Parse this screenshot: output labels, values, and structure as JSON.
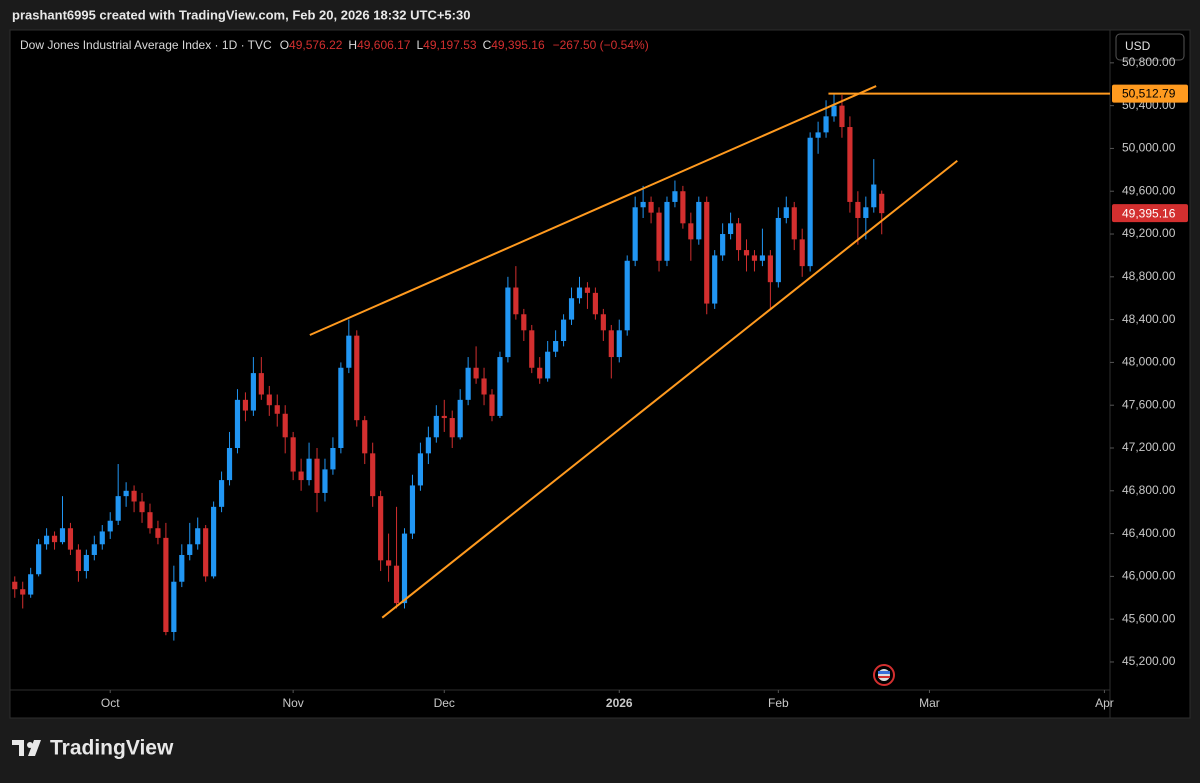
{
  "header": "prashant6995 created with TradingView.com, Feb 20, 2026 18:32 UTC+5:30",
  "brand": "TradingView",
  "currency": "USD",
  "chart_data": {
    "type": "candlestick",
    "title": "Dow Jones Industrial Average Index · 1D · TVC",
    "ohlc_legend": [
      {
        "key": "O",
        "value": "49,576.22"
      },
      {
        "key": "H",
        "value": "49,606.17"
      },
      {
        "key": "L",
        "value": "49,197.53"
      },
      {
        "key": "C",
        "value": "49,395.16"
      }
    ],
    "change": "−267.50 (−0.54%)",
    "up_color": "#2196f3",
    "down_color": "#d32f2f",
    "line_color": "#ff9a1f",
    "ohlc": [
      [
        45950,
        46000,
        45800,
        45880
      ],
      [
        45880,
        45950,
        45700,
        45830
      ],
      [
        45830,
        46080,
        45800,
        46020
      ],
      [
        46020,
        46350,
        46000,
        46300
      ],
      [
        46300,
        46450,
        46250,
        46380
      ],
      [
        46380,
        46420,
        46250,
        46320
      ],
      [
        46320,
        46750,
        46300,
        46450
      ],
      [
        46450,
        46500,
        46200,
        46250
      ],
      [
        46250,
        46300,
        45950,
        46050
      ],
      [
        46050,
        46250,
        45980,
        46200
      ],
      [
        46200,
        46380,
        46150,
        46300
      ],
      [
        46300,
        46480,
        46250,
        46420
      ],
      [
        46420,
        46600,
        46350,
        46520
      ],
      [
        46520,
        47050,
        46480,
        46750
      ],
      [
        46750,
        46880,
        46650,
        46800
      ],
      [
        46800,
        46850,
        46600,
        46700
      ],
      [
        46700,
        46780,
        46500,
        46600
      ],
      [
        46600,
        46680,
        46400,
        46450
      ],
      [
        46450,
        46520,
        46300,
        46360
      ],
      [
        46360,
        46500,
        45450,
        45480
      ],
      [
        45480,
        46100,
        45400,
        45950
      ],
      [
        45950,
        46300,
        45900,
        46200
      ],
      [
        46200,
        46500,
        46150,
        46300
      ],
      [
        46300,
        46550,
        46250,
        46450
      ],
      [
        46450,
        46480,
        45950,
        46000
      ],
      [
        46000,
        46700,
        45980,
        46650
      ],
      [
        46650,
        46980,
        46600,
        46900
      ],
      [
        46900,
        47350,
        46850,
        47200
      ],
      [
        47200,
        47750,
        47150,
        47650
      ],
      [
        47650,
        47720,
        47450,
        47550
      ],
      [
        47550,
        48050,
        47500,
        47900
      ],
      [
        47900,
        48050,
        47650,
        47700
      ],
      [
        47700,
        47780,
        47500,
        47600
      ],
      [
        47600,
        47700,
        47400,
        47520
      ],
      [
        47520,
        47600,
        47150,
        47300
      ],
      [
        47300,
        47350,
        46900,
        46980
      ],
      [
        46980,
        47100,
        46800,
        46900
      ],
      [
        46900,
        47250,
        46850,
        47100
      ],
      [
        47100,
        47200,
        46600,
        46780
      ],
      [
        46780,
        47100,
        46700,
        47000
      ],
      [
        47000,
        47300,
        46950,
        47200
      ],
      [
        47200,
        48000,
        47150,
        47950
      ],
      [
        47950,
        48400,
        47900,
        48250
      ],
      [
        48250,
        48300,
        47400,
        47460
      ],
      [
        47460,
        47500,
        47050,
        47150
      ],
      [
        47150,
        47250,
        46650,
        46750
      ],
      [
        46750,
        46800,
        46050,
        46150
      ],
      [
        46150,
        46400,
        45950,
        46100
      ],
      [
        46100,
        46650,
        45700,
        45750
      ],
      [
        45750,
        46450,
        45700,
        46400
      ],
      [
        46400,
        46950,
        46350,
        46850
      ],
      [
        46850,
        47250,
        46800,
        47150
      ],
      [
        47150,
        47400,
        47050,
        47300
      ],
      [
        47300,
        47600,
        47250,
        47500
      ],
      [
        47500,
        47650,
        47350,
        47480
      ],
      [
        47480,
        47550,
        47200,
        47300
      ],
      [
        47300,
        47750,
        47280,
        47650
      ],
      [
        47650,
        48050,
        47600,
        47950
      ],
      [
        47950,
        48150,
        47800,
        47850
      ],
      [
        47850,
        47950,
        47600,
        47700
      ],
      [
        47700,
        47750,
        47450,
        47500
      ],
      [
        47500,
        48100,
        47480,
        48050
      ],
      [
        48050,
        48800,
        48000,
        48700
      ],
      [
        48700,
        48900,
        48400,
        48450
      ],
      [
        48450,
        48500,
        48200,
        48300
      ],
      [
        48300,
        48350,
        47900,
        47950
      ],
      [
        47950,
        48050,
        47800,
        47850
      ],
      [
        47850,
        48200,
        47820,
        48100
      ],
      [
        48100,
        48300,
        48050,
        48200
      ],
      [
        48200,
        48450,
        48150,
        48400
      ],
      [
        48400,
        48700,
        48350,
        48600
      ],
      [
        48600,
        48800,
        48550,
        48700
      ],
      [
        48700,
        48750,
        48500,
        48650
      ],
      [
        48650,
        48700,
        48400,
        48450
      ],
      [
        48450,
        48500,
        48200,
        48300
      ],
      [
        48300,
        48350,
        47850,
        48050
      ],
      [
        48050,
        48400,
        48000,
        48300
      ],
      [
        48300,
        49000,
        48250,
        48950
      ],
      [
        48950,
        49550,
        48900,
        49450
      ],
      [
        49450,
        49650,
        49350,
        49500
      ],
      [
        49500,
        49550,
        49300,
        49400
      ],
      [
        49400,
        49450,
        48850,
        48950
      ],
      [
        48950,
        49550,
        48900,
        49500
      ],
      [
        49500,
        49700,
        49450,
        49600
      ],
      [
        49600,
        49650,
        49250,
        49300
      ],
      [
        49300,
        49400,
        48950,
        49150
      ],
      [
        49150,
        49550,
        49100,
        49500
      ],
      [
        49500,
        49550,
        48450,
        48550
      ],
      [
        48550,
        49050,
        48500,
        49000
      ],
      [
        49000,
        49300,
        48950,
        49200
      ],
      [
        49200,
        49400,
        49150,
        49300
      ],
      [
        49300,
        49350,
        48950,
        49050
      ],
      [
        49050,
        49150,
        48850,
        49000
      ],
      [
        49000,
        49050,
        48850,
        48950
      ],
      [
        48950,
        49250,
        48900,
        49000
      ],
      [
        49000,
        49050,
        48500,
        48750
      ],
      [
        48750,
        49450,
        48700,
        49350
      ],
      [
        49350,
        49550,
        49300,
        49450
      ],
      [
        49450,
        49500,
        49050,
        49150
      ],
      [
        49150,
        49250,
        48800,
        48900
      ],
      [
        48900,
        50150,
        48850,
        50100
      ],
      [
        50100,
        50250,
        49950,
        50150
      ],
      [
        50150,
        50450,
        50100,
        50300
      ],
      [
        50300,
        50513,
        50250,
        50400
      ],
      [
        50400,
        50500,
        50100,
        50200
      ],
      [
        50200,
        50300,
        49400,
        49500
      ],
      [
        49500,
        49600,
        49100,
        49350
      ],
      [
        49350,
        49550,
        49150,
        49450
      ],
      [
        49450,
        49900,
        49400,
        49662.66
      ],
      [
        49576.22,
        49606.17,
        49197.53,
        49395.16
      ]
    ],
    "last_price_label": "49,395.16",
    "trendlines": [
      {
        "x": [
          37.1,
          108.3
        ],
        "y": [
          48256,
          50583
        ]
      },
      {
        "x": [
          46.2,
          118.5
        ],
        "y": [
          45614,
          49885
        ]
      }
    ],
    "hline": {
      "x0": 102.3,
      "value": 50512.79,
      "label": "50,512.79"
    },
    "xlim": [
      -0.6,
      137.7
    ],
    "xticks": [
      {
        "value": 12,
        "label": "Oct"
      },
      {
        "value": 35,
        "label": "Nov"
      },
      {
        "value": 54,
        "label": "Dec"
      },
      {
        "value": 76,
        "label": "2026"
      },
      {
        "value": 96,
        "label": "Feb"
      },
      {
        "value": 115,
        "label": "Mar"
      },
      {
        "value": 137,
        "label": "Apr"
      }
    ],
    "ylim": [
      44938,
      51107
    ],
    "yticks": [
      {
        "value": 45200,
        "label": "45,200.00"
      },
      {
        "value": 45600,
        "label": "45,600.00"
      },
      {
        "value": 46000,
        "label": "46,000.00"
      },
      {
        "value": 46400,
        "label": "46,400.00"
      },
      {
        "value": 46800,
        "label": "46,800.00"
      },
      {
        "value": 47200,
        "label": "47,200.00"
      },
      {
        "value": 47600,
        "label": "47,600.00"
      },
      {
        "value": 48000,
        "label": "48,000.00"
      },
      {
        "value": 48400,
        "label": "48,400.00"
      },
      {
        "value": 48800,
        "label": "48,800.00"
      },
      {
        "value": 49200,
        "label": "49,200.00"
      },
      {
        "value": 49600,
        "label": "49,600.00"
      },
      {
        "value": 50000,
        "label": "50,000.00"
      },
      {
        "value": 50400,
        "label": "50,400.00"
      },
      {
        "value": 50800,
        "label": "50,800.00"
      }
    ],
    "grid": false
  }
}
